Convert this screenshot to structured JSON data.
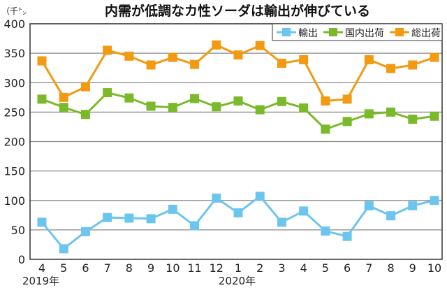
{
  "chart_data": {
    "type": "line",
    "title": "内需が低調なカ性ソーダは輸出が伸びている",
    "ylabel": "（千㌧",
    "xlabel": "",
    "ylim": [
      0,
      400
    ],
    "yticks": [
      0,
      50,
      100,
      150,
      200,
      250,
      300,
      350,
      400
    ],
    "categories": [
      "4",
      "5",
      "6",
      "7",
      "8",
      "9",
      "10",
      "11",
      "12",
      "1",
      "2",
      "3",
      "4",
      "5",
      "6",
      "7",
      "8",
      "9",
      "10"
    ],
    "year_labels": [
      {
        "label": "2019年",
        "index": 0
      },
      {
        "label": "2020年",
        "index": 9
      }
    ],
    "grid": true,
    "legend_position": "top-right",
    "series": [
      {
        "name": "輸出",
        "color": "#6cc5ef",
        "values": [
          63,
          18,
          47,
          71,
          70,
          69,
          85,
          57,
          104,
          79,
          107,
          63,
          82,
          48,
          39,
          91,
          74,
          91,
          100
        ]
      },
      {
        "name": "国内出荷",
        "color": "#7ab929",
        "values": [
          272,
          258,
          246,
          283,
          274,
          260,
          258,
          273,
          259,
          269,
          254,
          268,
          257,
          221,
          234,
          247,
          250,
          238,
          243
        ]
      },
      {
        "name": "総出荷",
        "color": "#f19a12",
        "values": [
          337,
          275,
          293,
          355,
          345,
          330,
          343,
          331,
          364,
          347,
          363,
          333,
          339,
          269,
          272,
          339,
          324,
          330,
          343
        ]
      }
    ]
  }
}
